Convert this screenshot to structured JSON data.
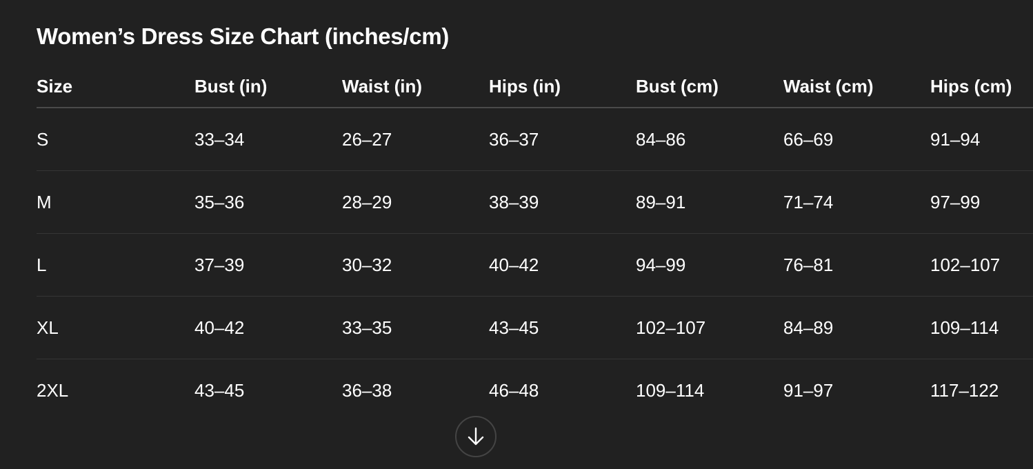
{
  "title": "Women’s Dress Size Chart (inches/cm)",
  "table": {
    "headers": [
      "Size",
      "Bust (in)",
      "Waist (in)",
      "Hips (in)",
      "Bust (cm)",
      "Waist (cm)",
      "Hips (cm)"
    ],
    "rows": [
      [
        "S",
        "33–34",
        "26–27",
        "36–37",
        "84–86",
        "66–69",
        "91–94"
      ],
      [
        "M",
        "35–36",
        "28–29",
        "38–39",
        "89–91",
        "71–74",
        "97–99"
      ],
      [
        "L",
        "37–39",
        "30–32",
        "40–42",
        "94–99",
        "76–81",
        "102–107"
      ],
      [
        "XL",
        "40–42",
        "33–35",
        "43–45",
        "102–107",
        "84–89",
        "109–114"
      ],
      [
        "2XL",
        "43–45",
        "36–38",
        "46–48",
        "109–114",
        "91–97",
        "117–122"
      ]
    ]
  },
  "scroll_button": {
    "icon": "arrow-down-icon"
  },
  "colors": {
    "background": "#212121",
    "text": "#ffffff",
    "divider": "#363636"
  }
}
